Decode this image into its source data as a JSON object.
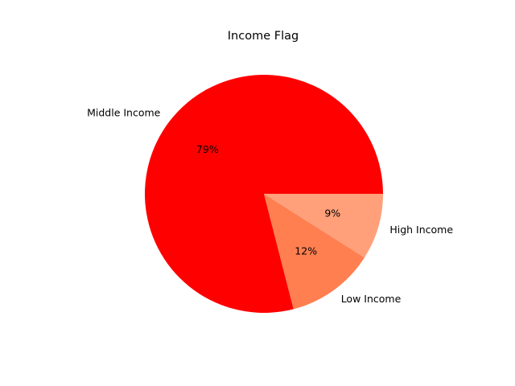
{
  "chart_data": {
    "type": "pie",
    "title": "Income Flag",
    "slices": [
      {
        "label": "Middle Income",
        "value": 79,
        "pct_label": "79%",
        "color": "#ff0000"
      },
      {
        "label": "Low Income",
        "value": 12,
        "pct_label": "12%",
        "color": "#ff7f50"
      },
      {
        "label": "High Income",
        "value": 9,
        "pct_label": "9%",
        "color": "#ffa07a"
      }
    ],
    "start_angle_deg": 0,
    "direction": "counterclockwise",
    "legend": "none"
  }
}
